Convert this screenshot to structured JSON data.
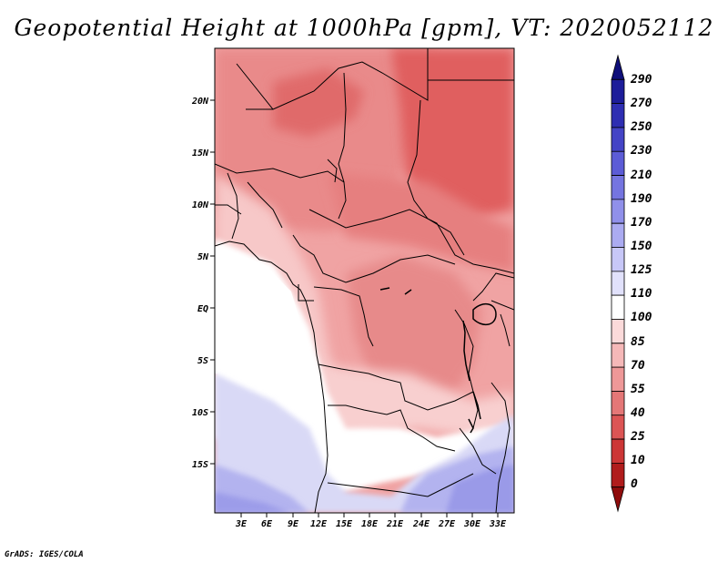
{
  "title": "Geopotential Height at 1000hPa [gpm], VT: 2020052112",
  "footer": "GrADS: IGES/COLA",
  "map": {
    "lat_labels": [
      "20N",
      "15N",
      "10N",
      "5N",
      "EQ",
      "5S",
      "10S",
      "15S"
    ],
    "lon_labels": [
      "3E",
      "6E",
      "9E",
      "12E",
      "15E",
      "18E",
      "21E",
      "24E",
      "27E",
      "30E",
      "33E"
    ]
  },
  "colorbar": {
    "levels": [
      "290",
      "270",
      "250",
      "230",
      "210",
      "190",
      "170",
      "150",
      "125",
      "110",
      "100",
      "85",
      "70",
      "55",
      "40",
      "25",
      "10",
      "0"
    ],
    "colors": [
      "#0f0f7a",
      "#1d1d9a",
      "#2e2eb2",
      "#4444c6",
      "#5c5cd6",
      "#7575e0",
      "#9090ea",
      "#ababf1",
      "#c7c7f7",
      "#e1e1fb",
      "#ffffff",
      "#fbdada",
      "#f5b8b8",
      "#ee9898",
      "#e47777",
      "#dc5555",
      "#cc3636",
      "#b01c1c",
      "#8f0c0c"
    ]
  }
}
